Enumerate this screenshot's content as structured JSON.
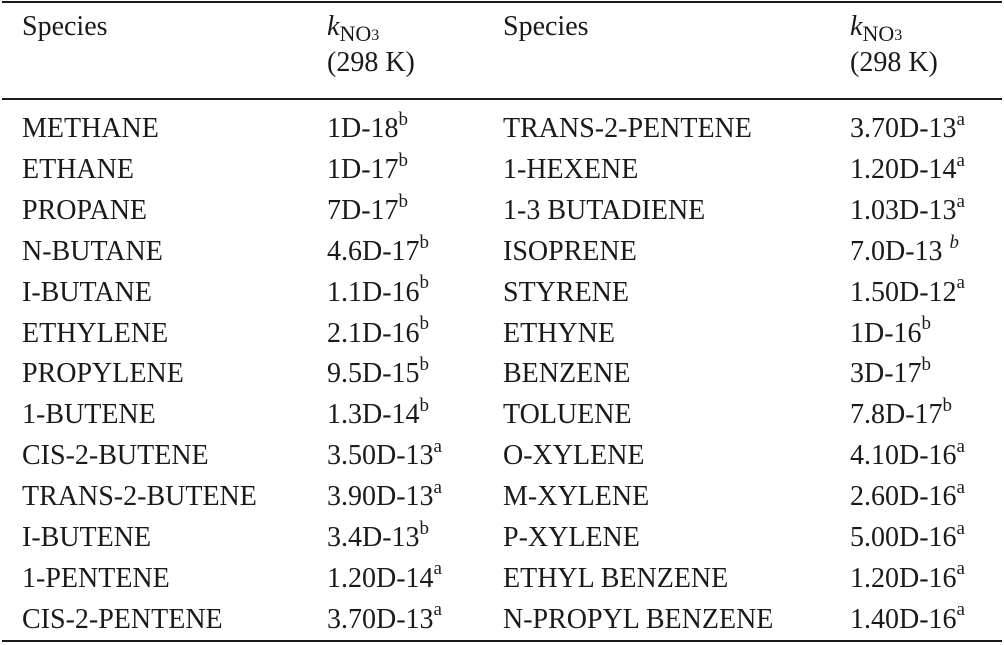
{
  "header": {
    "species_label": "Species",
    "k_symbol": "k",
    "k_subscript": "NO",
    "k_subsubscript": "3",
    "temperature": "(298 K)"
  },
  "rows": [
    {
      "species1": "METHANE",
      "val1": "1D-18",
      "note1": "b",
      "species2": "TRANS-2-PENTENE",
      "val2": "3.70D-13",
      "note2": "a"
    },
    {
      "species1": "ETHANE",
      "val1": "1D-17",
      "note1": "b",
      "species2": "1-HEXENE",
      "val2": "1.20D-14",
      "note2": "a"
    },
    {
      "species1": "PROPANE",
      "val1": "7D-17",
      "note1": "b",
      "species2": "1-3 BUTADIENE",
      "val2": "1.03D-13",
      "note2": "a"
    },
    {
      "species1": "N-BUTANE",
      "val1": "4.6D-17",
      "note1": "b",
      "species2": "ISOPRENE",
      "val2": "7.0D-13 ",
      "note2": "b"
    },
    {
      "species1": "I-BUTANE",
      "val1": "1.1D-16",
      "note1": "b",
      "species2": "STYRENE",
      "val2": "1.50D-12",
      "note2": "a"
    },
    {
      "species1": "ETHYLENE",
      "val1": "2.1D-16",
      "note1": "b",
      "species2": "ETHYNE",
      "val2": "1D-16",
      "note2": "b"
    },
    {
      "species1": "PROPYLENE",
      "val1": "9.5D-15",
      "note1": "b",
      "species2": "BENZENE",
      "val2": "3D-17",
      "note2": "b"
    },
    {
      "species1": "1-BUTENE",
      "val1": "1.3D-14",
      "note1": "b",
      "species2": "TOLUENE",
      "val2": "7.8D-17",
      "note2": "b"
    },
    {
      "species1": "CIS-2-BUTENE",
      "val1": "3.50D-13",
      "note1": "a",
      "species2": "O-XYLENE",
      "val2": "4.10D-16",
      "note2": "a"
    },
    {
      "species1": "TRANS-2-BUTENE",
      "val1": "3.90D-13",
      "note1": "a",
      "species2": "M-XYLENE",
      "val2": "2.60D-16",
      "note2": "a"
    },
    {
      "species1": "I-BUTENE",
      "val1": "3.4D-13",
      "note1": "b",
      "species2": "P-XYLENE",
      "val2": "5.00D-16",
      "note2": "a"
    },
    {
      "species1": "1-PENTENE",
      "val1": "1.20D-14",
      "note1": "a",
      "species2": "ETHYL BENZENE",
      "val2": "1.20D-16",
      "note2": "a"
    },
    {
      "species1": "CIS-2-PENTENE",
      "val1": "3.70D-13",
      "note1": "a",
      "species2": "N-PROPYL BENZENE",
      "val2": "1.40D-16",
      "note2": "a"
    }
  ]
}
